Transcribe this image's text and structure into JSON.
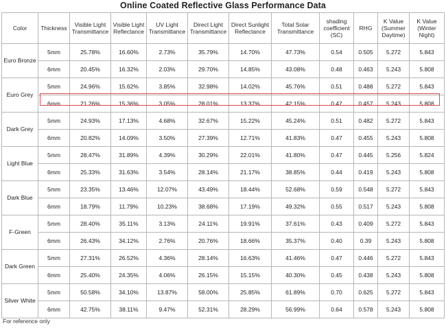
{
  "title": "Online Coated Reflective Glass Performance Data",
  "headers": {
    "color": "Color",
    "thickness": "Thickness",
    "vlt": "Visible Light Transmittance",
    "vlr": "Visible Light Reflectance",
    "uv": "UV Light Transmittance",
    "dlt": "Direct Light Transmittance",
    "dsr": "Direct Sunlight Reflectance",
    "tst": "Total Solar Transmittance",
    "sc": "shading coefficient (SC)",
    "rhg": "RHG",
    "ks": "K Value (Summer Daytime)",
    "kw": "K Value (Winter Night)"
  },
  "groups": [
    {
      "color": "Euro Bronze",
      "rows": [
        {
          "thickness": "5mm",
          "vlt": "25.78%",
          "vlr": "16.60%",
          "uv": "2.73%",
          "dlt": "35.79%",
          "dsr": "14.70%",
          "tst": "47.73%",
          "sc": "0.54",
          "rhg": "0.505",
          "ks": "5.272",
          "kw": "5.843"
        },
        {
          "thickness": "6mm",
          "vlt": "20.45%",
          "vlr": "16.32%",
          "uv": "2.03%",
          "dlt": "29.70%",
          "dsr": "14.85%",
          "tst": "43.08%",
          "sc": "0.48",
          "rhg": "0.463",
          "ks": "5.243",
          "kw": "5.808"
        }
      ]
    },
    {
      "color": "Euro Grey",
      "rows": [
        {
          "thickness": "5mm",
          "vlt": "24.96%",
          "vlr": "15.62%",
          "uv": "3.85%",
          "dlt": "32.98%",
          "dsr": "14.02%",
          "tst": "45.76%",
          "sc": "0.51",
          "rhg": "0.488",
          "ks": "5.272",
          "kw": "5.843"
        },
        {
          "thickness": "6mm",
          "vlt": "21.26%",
          "vlr": "15.36%",
          "uv": "3.05%",
          "dlt": "28.01%",
          "dsr": "13.37%",
          "tst": "42.15%",
          "sc": "0.47",
          "rhg": "0.457",
          "ks": "5.243",
          "kw": "5.808"
        }
      ]
    },
    {
      "color": "Dark Grey",
      "rows": [
        {
          "thickness": "5mm",
          "vlt": "24.93%",
          "vlr": "17.13%",
          "uv": "4.68%",
          "dlt": "32.67%",
          "dsr": "15.22%",
          "tst": "45.24%",
          "sc": "0.51",
          "rhg": "0.482",
          "ks": "5.272",
          "kw": "5.843"
        },
        {
          "thickness": "6mm",
          "vlt": "20.82%",
          "vlr": "14.09%",
          "uv": "3.50%",
          "dlt": "27.39%",
          "dsr": "12.71%",
          "tst": "41.83%",
          "sc": "0.47",
          "rhg": "0.455",
          "ks": "5.243",
          "kw": "5.808"
        }
      ]
    },
    {
      "color": "Light Blue",
      "rows": [
        {
          "thickness": "5mm",
          "vlt": "28.47%",
          "vlr": "31.89%",
          "uv": "4.39%",
          "dlt": "30.29%",
          "dsr": "22.01%",
          "tst": "41.80%",
          "sc": "0.47",
          "rhg": "0.445",
          "ks": "5.256",
          "kw": "5.824"
        },
        {
          "thickness": "6mm",
          "vlt": "25.33%",
          "vlr": "31.63%",
          "uv": "3.54%",
          "dlt": "28.14%",
          "dsr": "21.17%",
          "tst": "38.85%",
          "sc": "0.44",
          "rhg": "0.419",
          "ks": "5.243",
          "kw": "5.808"
        }
      ]
    },
    {
      "color": "Dark Blue",
      "rows": [
        {
          "thickness": "5mm",
          "vlt": "23.35%",
          "vlr": "13.46%",
          "uv": "12.07%",
          "dlt": "43.49%",
          "dsr": "18.44%",
          "tst": "52.68%",
          "sc": "0.59",
          "rhg": "0.548",
          "ks": "5.272",
          "kw": "5.843"
        },
        {
          "thickness": "6mm",
          "vlt": "18.79%",
          "vlr": "11.79%",
          "uv": "10.23%",
          "dlt": "38.68%",
          "dsr": "17.19%",
          "tst": "49.32%",
          "sc": "0.55",
          "rhg": "0.517",
          "ks": "5.243",
          "kw": "5.808"
        }
      ]
    },
    {
      "color": "F-Green",
      "rows": [
        {
          "thickness": "5mm",
          "vlt": "28.40%",
          "vlr": "35.11%",
          "uv": "3.13%",
          "dlt": "24.11%",
          "dsr": "19.91%",
          "tst": "37.61%",
          "sc": "0.43",
          "rhg": "0.409",
          "ks": "5.272",
          "kw": "5.843"
        },
        {
          "thickness": "6mm",
          "vlt": "26.43%",
          "vlr": "34.12%",
          "uv": "2.76%",
          "dlt": "20.76%",
          "dsr": "18.66%",
          "tst": "35.37%",
          "sc": "0.40",
          "rhg": "0.39",
          "ks": "5.243",
          "kw": "5.808"
        }
      ]
    },
    {
      "color": "Dark Green",
      "rows": [
        {
          "thickness": "5mm",
          "vlt": "27.31%",
          "vlr": "26.52%",
          "uv": "4.36%",
          "dlt": "28.14%",
          "dsr": "16.63%",
          "tst": "41.46%",
          "sc": "0.47",
          "rhg": "0.446",
          "ks": "5.272",
          "kw": "5.843"
        },
        {
          "thickness": "6mm",
          "vlt": "25.40%",
          "vlr": "24.35%",
          "uv": "4.06%",
          "dlt": "26.15%",
          "dsr": "15.15%",
          "tst": "40.30%",
          "sc": "0.45",
          "rhg": "0.438",
          "ks": "5.243",
          "kw": "5.808"
        }
      ]
    },
    {
      "color": "Silver White",
      "rows": [
        {
          "thickness": "5mm",
          "vlt": "50.58%",
          "vlr": "34.10%",
          "uv": "13.87%",
          "dlt": "58.00%",
          "dsr": "25.85%",
          "tst": "61.89%",
          "sc": "0.70",
          "rhg": "0.625",
          "ks": "5.272",
          "kw": "5.843"
        },
        {
          "thickness": "6mm",
          "vlt": "42.75%",
          "vlr": "38.11%",
          "uv": "9.47%",
          "dlt": "52.31%",
          "dsr": "28.29%",
          "tst": "56.99%",
          "sc": "0.64",
          "rhg": "0.578",
          "ks": "5.243",
          "kw": "5.808"
        }
      ]
    }
  ],
  "highlight": {
    "group": 1,
    "row": 1,
    "color": "#d64b4b"
  },
  "footnote": "For reference only"
}
